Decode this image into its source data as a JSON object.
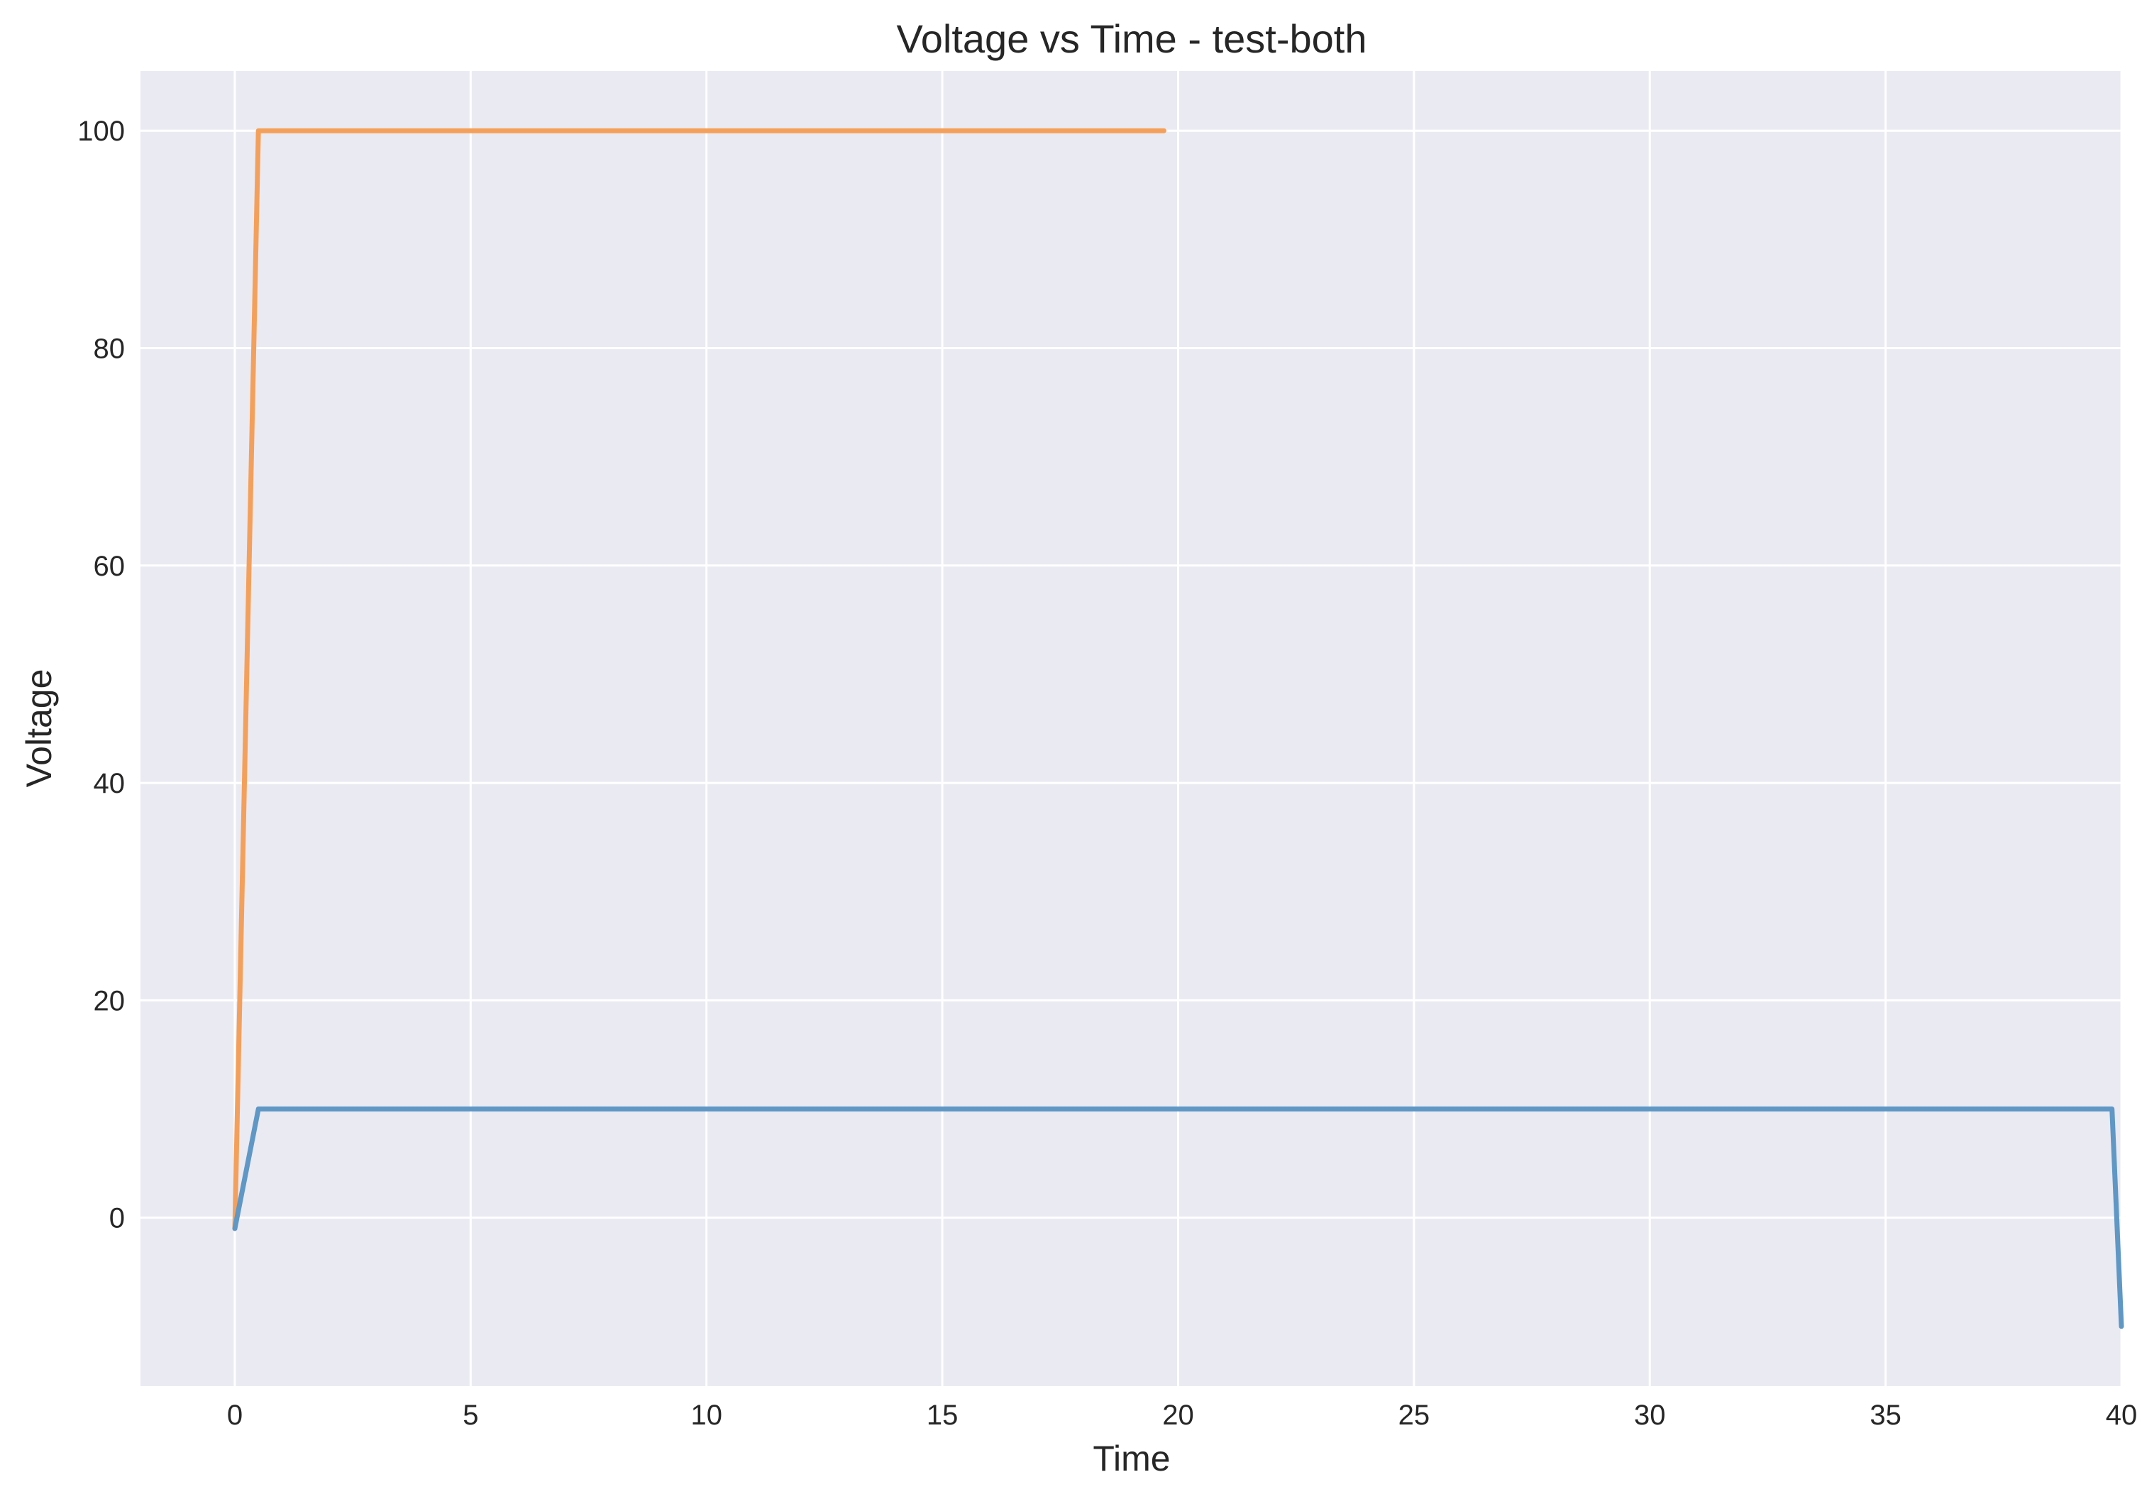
{
  "chart_data": {
    "type": "line",
    "title": "Voltage vs Time - test-both",
    "xlabel": "Time",
    "ylabel": "Voltage",
    "xlim": [
      -2,
      40
    ],
    "ylim": [
      -15.5,
      105.5
    ],
    "xticks": [
      0,
      5,
      10,
      15,
      20,
      25,
      30,
      35,
      40
    ],
    "yticks": [
      0,
      20,
      40,
      60,
      80,
      100
    ],
    "grid": true,
    "background_color": "#eaeaf2",
    "grid_color": "#ffffff",
    "series": [
      {
        "color": "#f4a05a",
        "x": [
          0,
          0.5,
          19.7
        ],
        "y": [
          -1,
          100,
          100
        ]
      },
      {
        "color": "#5f97c5",
        "x": [
          0,
          0.5,
          39.8,
          40
        ],
        "y": [
          -1,
          10,
          10,
          -10
        ]
      }
    ]
  }
}
